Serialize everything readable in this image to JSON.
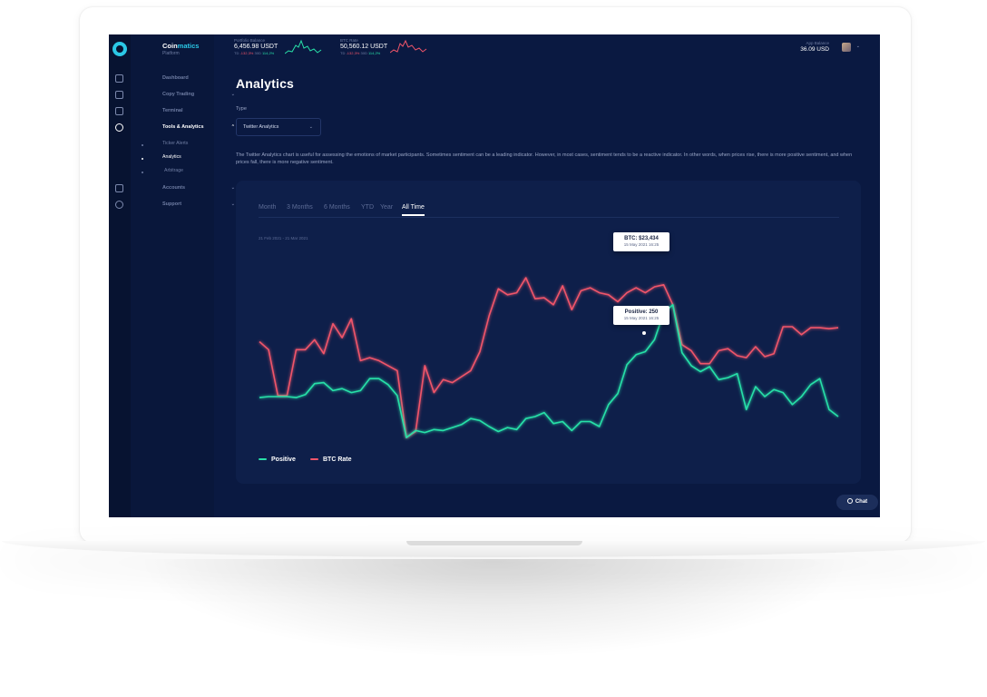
{
  "brand": {
    "name_prefix": "Coin",
    "name_accent": "matics",
    "subtitle": "Platform"
  },
  "sidebar": {
    "items": [
      {
        "label": "Dashboard",
        "icon": "dashboard-icon"
      },
      {
        "label": "Copy Trading",
        "icon": "copy-icon",
        "has_submenu": true
      },
      {
        "label": "Terminal",
        "icon": "terminal-icon"
      },
      {
        "label": "Tools & Analytics",
        "icon": "analytics-icon",
        "expanded": true
      },
      {
        "label": "Accounts",
        "icon": "wallet-icon",
        "has_submenu": true
      },
      {
        "label": "Support",
        "icon": "help-icon",
        "has_submenu": true
      }
    ],
    "subitems": [
      {
        "label": "Ticker Alerts"
      },
      {
        "label": "Analytics",
        "active": true
      },
      {
        "label": "Arbitrage"
      }
    ]
  },
  "header": {
    "portfolio": {
      "label": "Portfolio Balance",
      "value": "6,456.98 USDT",
      "meta_prefix": "TD",
      "change_neg": "-132,3%",
      "meta_mid": "30D",
      "change_pos": "114,2%"
    },
    "btc": {
      "label": "BTC Rate",
      "value": "50,560.12 USDT",
      "meta_prefix": "TD",
      "change_neg": "-132,3%",
      "meta_mid": "30D",
      "change_pos": "114,2%"
    },
    "app_balance": {
      "label": "App Balance",
      "value": "36.09 USD"
    }
  },
  "page": {
    "title": "Analytics",
    "type_label": "Type",
    "type_value": "Twitter Analytics",
    "description": "The Twitter Analytics chart is useful for assessing the emotions of market participants. Sometimes sentiment can be a leading indicator. However, in most cases, sentiment tends to be a reactive indicator. In other words, when prices rise, there is more positive sentiment, and when prices fall, there is more negative sentiment."
  },
  "chart": {
    "tabs": [
      "Month",
      "3 Months",
      "6 Months",
      "YTD",
      "Year",
      "All Time"
    ],
    "active_tab": "All Time",
    "date_range": "21 Feb 2021 - 21 Mar 2021",
    "tooltips": {
      "btc": {
        "title": "BTC: $23,434",
        "sub": "15 May 2021 16:25"
      },
      "positive": {
        "title": "Positive: 250",
        "sub": "15 May 2021 16:25"
      }
    },
    "legend": [
      {
        "name": "Positive",
        "color": "#28e0a8"
      },
      {
        "name": "BTC Rate",
        "color": "#f0556a"
      }
    ]
  },
  "chart_data": {
    "type": "line",
    "title": "",
    "xlabel": "",
    "ylabel": "",
    "grid": false,
    "legend_position": "bottom-left",
    "colors": {
      "Positive": "#28e0a8",
      "BTC Rate": "#f0556a"
    },
    "series": [
      {
        "name": "Positive",
        "values": [
          39,
          40,
          40,
          40,
          39,
          42,
          53,
          54,
          46,
          48,
          44,
          46,
          58,
          58,
          52,
          41,
          -1,
          6,
          4,
          7,
          6,
          9,
          12,
          18,
          16,
          10,
          5,
          9,
          7,
          18,
          20,
          24,
          13,
          15,
          6,
          15,
          15,
          10,
          32,
          43,
          72,
          82,
          85,
          97,
          124,
          132,
          84,
          71,
          65,
          70,
          57,
          59,
          63,
          27,
          50,
          40,
          47,
          44,
          32,
          40,
          52,
          58,
          27,
          20
        ]
      },
      {
        "name": "BTC Rate",
        "values": [
          95,
          87,
          41,
          41,
          87,
          87,
          97,
          83,
          113,
          99,
          118,
          76,
          79,
          76,
          71,
          66,
          -1,
          5,
          71,
          44,
          57,
          54,
          60,
          66,
          85,
          121,
          148,
          142,
          144,
          159,
          138,
          139,
          132,
          151,
          127,
          146,
          149,
          144,
          142,
          135,
          144,
          149,
          144,
          150,
          152,
          132,
          92,
          86,
          73,
          73,
          86,
          88,
          81,
          79,
          90,
          80,
          83,
          110,
          110,
          102,
          109,
          109,
          108,
          109
        ]
      }
    ]
  }
}
